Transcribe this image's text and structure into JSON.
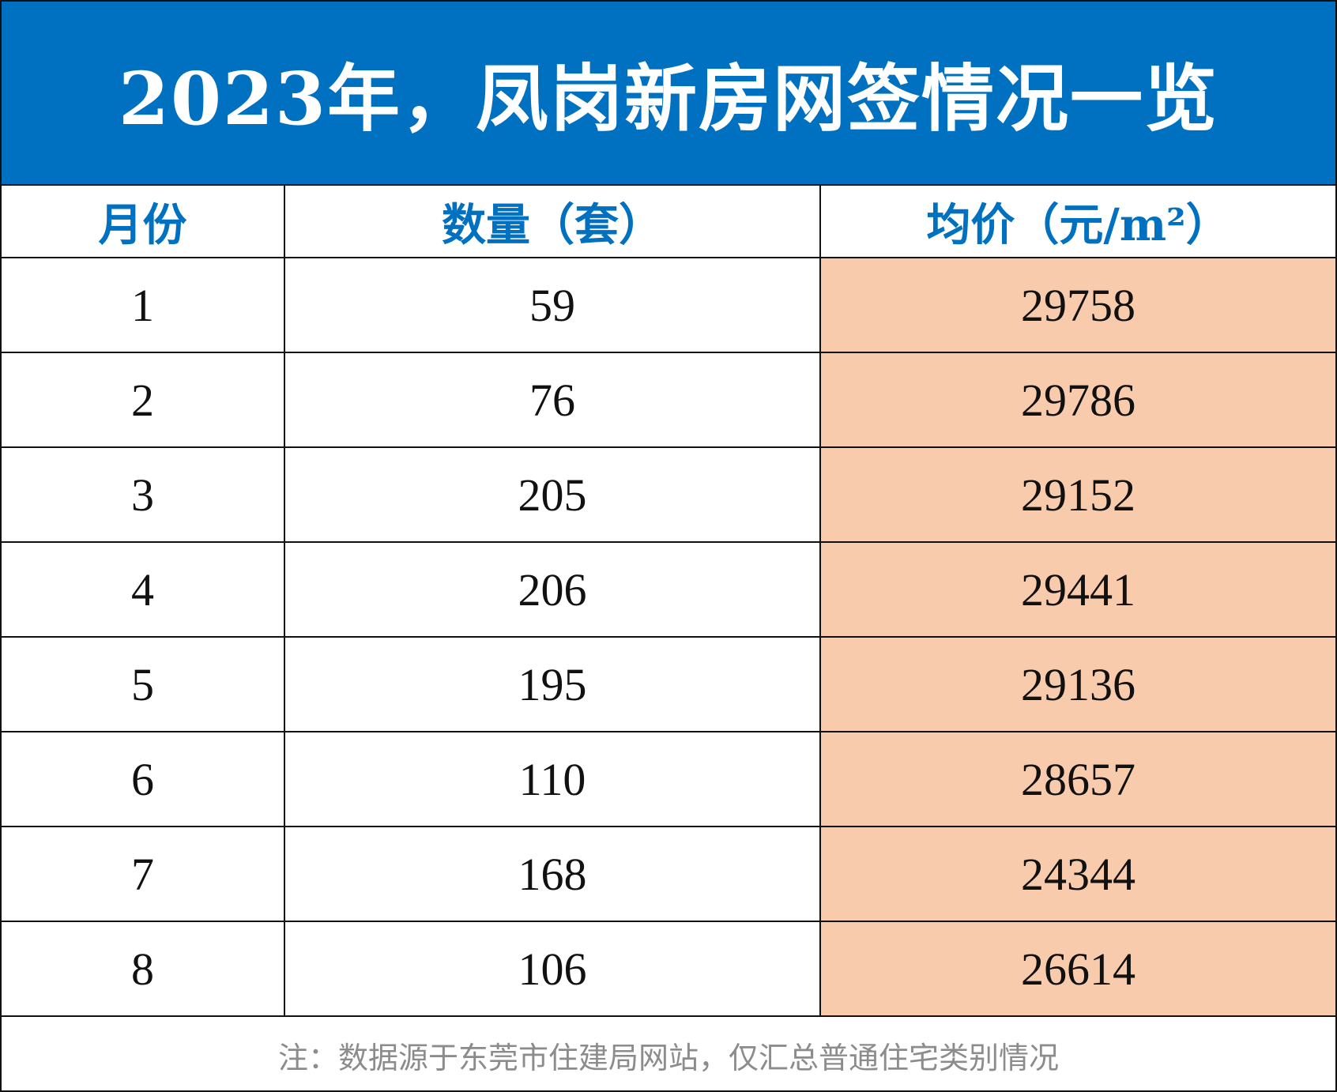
{
  "colors": {
    "title_background": "#0070c0",
    "header_text": "#0070c0",
    "price_cell_background": "#f8cbad",
    "footnote_text": "#8c8c8c"
  },
  "chart_data": {
    "type": "table",
    "title": "2023年，凤岗新房网签情况一览",
    "columns": [
      "月份",
      "数量（套）",
      "均价（元/m²）"
    ],
    "rows": [
      [
        "1",
        "59",
        "29758"
      ],
      [
        "2",
        "76",
        "29786"
      ],
      [
        "3",
        "205",
        "29152"
      ],
      [
        "4",
        "206",
        "29441"
      ],
      [
        "5",
        "195",
        "29136"
      ],
      [
        "6",
        "110",
        "28657"
      ],
      [
        "7",
        "168",
        "24344"
      ],
      [
        "8",
        "106",
        "26614"
      ]
    ],
    "footnote": "注：数据源于东莞市住建局网站，仅汇总普通住宅类别情况"
  }
}
